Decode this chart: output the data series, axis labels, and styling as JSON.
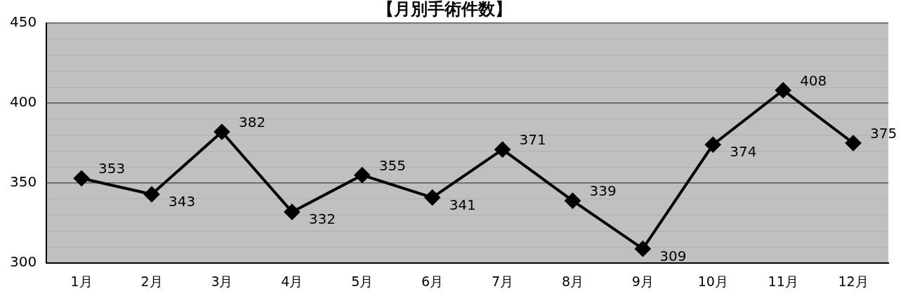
{
  "chart_data": {
    "type": "line",
    "title": "【月別手術件数】",
    "categories": [
      "1月",
      "2月",
      "3月",
      "4月",
      "5月",
      "6月",
      "7月",
      "8月",
      "9月",
      "10月",
      "11月",
      "12月"
    ],
    "series": [
      {
        "color": "#000000",
        "values": [
          353,
          343,
          382,
          332,
          355,
          341,
          371,
          339,
          309,
          374,
          408,
          375
        ]
      }
    ],
    "ylim": [
      300,
      450
    ],
    "yticks": [
      300,
      {
        "value": 310,
        "label": null
      },
      {
        "value": 320,
        "label": null
      },
      {
        "value": 330,
        "label": null
      },
      {
        "value": 340,
        "label": null
      },
      350,
      {
        "value": 360,
        "label": null
      },
      {
        "value": 370,
        "label": null
      },
      {
        "value": 380,
        "label": null
      },
      {
        "value": 390,
        "label": null
      },
      400,
      {
        "value": 410,
        "label": null
      },
      {
        "value": 420,
        "label": null
      },
      {
        "value": 430,
        "label": null
      },
      {
        "value": 440,
        "label": null
      },
      450
    ],
    "grid": "y",
    "marker": "diamond",
    "line_style": "solid",
    "data_labels": true,
    "legend": false
  }
}
